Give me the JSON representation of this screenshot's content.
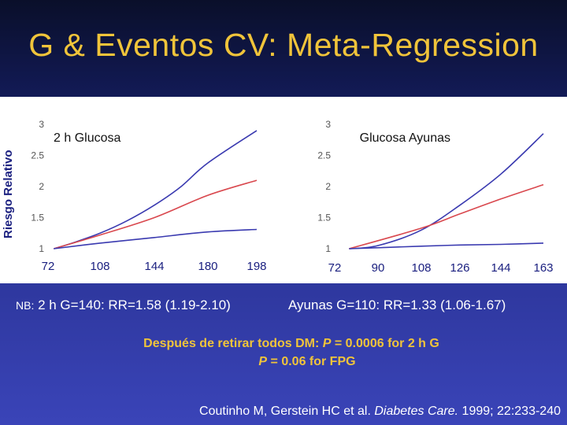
{
  "title": "G & Eventos CV: Meta-Regression",
  "y_axis_label": "Riesgo Relativo",
  "chart_data": [
    {
      "type": "line",
      "title": "2 h Glucosa",
      "ylim": [
        1,
        3
      ],
      "yticks": [
        "1",
        "1.5",
        "2",
        "2.5",
        "3"
      ],
      "xlim": [
        72,
        198
      ],
      "xticks": [
        "72",
        "108",
        "144",
        "180",
        "198"
      ],
      "xtick_values": [
        72,
        108,
        144,
        180,
        198
      ],
      "series": [
        {
          "name": "upper",
          "color": "#3a3ab0",
          "x": [
            76,
            90,
            108,
            126,
            144,
            162,
            180,
            198
          ],
          "values": [
            1.0,
            1.1,
            1.25,
            1.45,
            1.7,
            2.0,
            2.38,
            2.9
          ]
        },
        {
          "name": "estimate",
          "color": "#d9484e",
          "x": [
            76,
            108,
            144,
            180,
            198
          ],
          "values": [
            1.0,
            1.22,
            1.5,
            1.86,
            2.1
          ]
        },
        {
          "name": "lower",
          "color": "#3a3ab0",
          "x": [
            76,
            108,
            144,
            180,
            198
          ],
          "values": [
            1.0,
            1.09,
            1.18,
            1.27,
            1.31
          ]
        }
      ]
    },
    {
      "type": "line",
      "title": "Glucosa Ayunas",
      "ylim": [
        1,
        3
      ],
      "yticks": [
        "1",
        "1.5",
        "2",
        "2.5",
        "3"
      ],
      "xlim": [
        72,
        163
      ],
      "xticks": [
        "72",
        "90",
        "108",
        "126",
        "144",
        "163"
      ],
      "xtick_values": [
        72,
        90,
        108,
        126,
        144,
        163
      ],
      "series": [
        {
          "name": "upper",
          "color": "#3a3ab0",
          "x": [
            78,
            90,
            108,
            126,
            144,
            163
          ],
          "values": [
            1.0,
            1.05,
            1.3,
            1.7,
            2.2,
            2.85
          ]
        },
        {
          "name": "estimate",
          "color": "#d9484e",
          "x": [
            78,
            108,
            126,
            144,
            163
          ],
          "values": [
            1.0,
            1.33,
            1.56,
            1.8,
            2.03
          ]
        },
        {
          "name": "lower",
          "color": "#3a3ab0",
          "x": [
            78,
            108,
            126,
            144,
            163
          ],
          "values": [
            1.0,
            1.04,
            1.06,
            1.07,
            1.09
          ]
        }
      ]
    }
  ],
  "notes": {
    "nb_label": "NB:",
    "left": "2 h G=140: RR=1.58 (1.19-2.10)",
    "right": "Ayunas G=110: RR=1.33  (1.06-1.67)"
  },
  "conclusion": {
    "line1_prefix": "Después de retirar todos DM:",
    "line1_p": "P",
    "line1_value": "= 0.0006 for 2 h G",
    "line2_p": "P",
    "line2_value": "= 0.06 for FPG"
  },
  "citation": {
    "authors": "Coutinho M, Gerstein HC et al.",
    "journal": "Diabetes Care.",
    "details": "1999; 22:233-240"
  }
}
